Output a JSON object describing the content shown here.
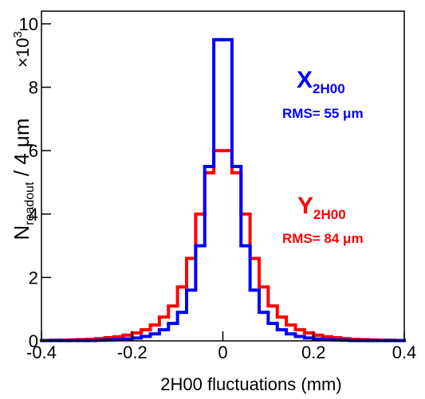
{
  "chart_data": {
    "type": "histogram",
    "xlabel": "2H00 fluctuations (mm)",
    "ylabel": {
      "main": "N",
      "sub": "readout",
      "rest": " / 4  μm"
    },
    "y_multiplier": {
      "base": "×10",
      "exp": "3"
    },
    "bins": [
      -0.4,
      -0.38,
      -0.36,
      -0.34,
      -0.32,
      -0.3,
      -0.28,
      -0.26,
      -0.24,
      -0.22,
      -0.2,
      -0.18,
      -0.16,
      -0.14,
      -0.12,
      -0.1,
      -0.08,
      -0.06,
      -0.04,
      -0.02,
      0,
      0.02,
      0.04,
      0.06,
      0.08,
      0.1,
      0.12,
      0.14,
      0.16,
      0.18,
      0.2,
      0.22,
      0.24,
      0.26,
      0.28,
      0.3,
      0.32,
      0.34,
      0.36,
      0.38,
      0.4
    ],
    "series": [
      {
        "name": "Y",
        "color": "#ff0000",
        "values": [
          0.01,
          0.02,
          0.02,
          0.03,
          0.04,
          0.05,
          0.07,
          0.1,
          0.13,
          0.18,
          0.25,
          0.35,
          0.5,
          0.75,
          1.1,
          1.7,
          2.6,
          4.0,
          5.3,
          6.0,
          6.0,
          5.3,
          4.0,
          2.6,
          1.7,
          1.1,
          0.75,
          0.5,
          0.35,
          0.25,
          0.18,
          0.13,
          0.1,
          0.07,
          0.05,
          0.04,
          0.03,
          0.02,
          0.02,
          0.01
        ]
      },
      {
        "name": "X",
        "color": "#0000ff",
        "values": [
          0.01,
          0.01,
          0.01,
          0.01,
          0.01,
          0.01,
          0.02,
          0.03,
          0.04,
          0.06,
          0.09,
          0.14,
          0.22,
          0.35,
          0.55,
          0.9,
          1.6,
          3.0,
          5.5,
          9.5,
          9.5,
          5.5,
          3.0,
          1.6,
          0.9,
          0.55,
          0.35,
          0.22,
          0.14,
          0.09,
          0.06,
          0.04,
          0.03,
          0.02,
          0.01,
          0.01,
          0.01,
          0.01,
          0.01,
          0.01
        ]
      }
    ],
    "annotations": [
      {
        "text": "X",
        "sub": "2H00",
        "color": "#0000ff"
      },
      {
        "text": "RMS= 55 μm",
        "color": "#0000ff"
      },
      {
        "text": "Y",
        "sub": "2H00",
        "color": "#ff0000"
      },
      {
        "text": "RMS= 84 μm",
        "color": "#ff0000"
      }
    ],
    "xlim": [
      -0.4,
      0.4
    ],
    "xticks": [
      -0.4,
      -0.2,
      0,
      0.2,
      0.4
    ],
    "ylim": [
      0,
      10.4
    ],
    "yticks": [
      0,
      2,
      4,
      6,
      8,
      10
    ]
  }
}
